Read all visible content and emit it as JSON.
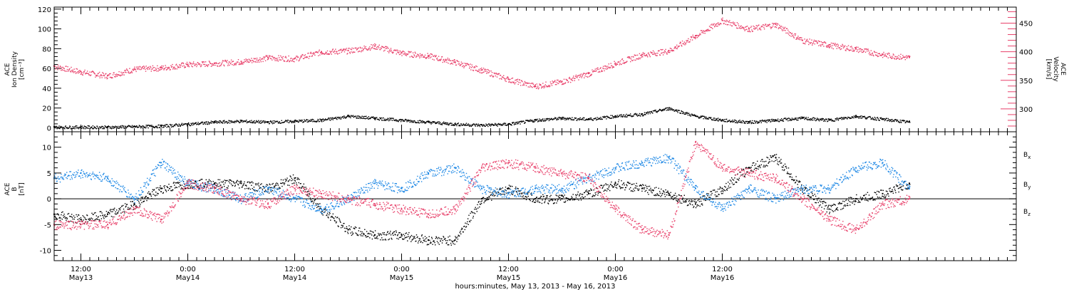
{
  "colors": {
    "density": "#000000",
    "velocity": "#e8406a",
    "bx": "#000000",
    "by": "#1e88e5",
    "bz": "#e8406a"
  },
  "chart_data": [
    {
      "type": "scatter",
      "panel": "top",
      "ylabel_left": [
        "ACE",
        "Ion Density",
        "[cm⁻³]"
      ],
      "ylabel_right": [
        "ACE",
        "Velocity",
        "[km/s]"
      ],
      "ylim_left": [
        -4,
        122
      ],
      "ylim_right": [
        260,
        478
      ],
      "yticks_left": [
        "0",
        "20",
        "40",
        "60",
        "80",
        "100",
        "120"
      ],
      "yticks_right": [
        "300",
        "350",
        "400",
        "450"
      ],
      "yticks_left_values": [
        0,
        20,
        40,
        60,
        80,
        100,
        120
      ],
      "yticks_right_values": [
        300,
        350,
        400,
        450
      ],
      "series": [
        {
          "name": "",
          "axis": "left",
          "color_key": "density",
          "x": [
            0,
            3,
            6,
            9,
            12,
            15,
            18,
            21,
            24,
            27,
            30,
            33,
            36,
            39,
            42,
            45,
            48,
            51,
            54,
            57,
            60,
            63,
            66,
            69,
            72,
            75,
            78,
            81,
            84,
            87,
            90,
            93,
            96
          ],
          "y": [
            1,
            1,
            1,
            1.5,
            2,
            4,
            6,
            7,
            6,
            7,
            8,
            12,
            10,
            8,
            6,
            4,
            3,
            4,
            8,
            10,
            9,
            12,
            14,
            20,
            12,
            8,
            6,
            8,
            10,
            8,
            12,
            9,
            6
          ]
        },
        {
          "name": "",
          "axis": "right",
          "color_key": "velocity",
          "x": [
            0,
            3,
            6,
            9,
            12,
            15,
            18,
            21,
            24,
            27,
            30,
            33,
            36,
            39,
            42,
            45,
            48,
            51,
            54,
            57,
            60,
            63,
            66,
            69,
            72,
            75,
            78,
            81,
            84,
            87,
            90,
            93,
            96
          ],
          "y": [
            375,
            365,
            358,
            370,
            372,
            378,
            380,
            383,
            390,
            388,
            400,
            402,
            410,
            398,
            393,
            382,
            368,
            352,
            340,
            348,
            362,
            380,
            395,
            402,
            428,
            455,
            440,
            448,
            420,
            412,
            405,
            395,
            390
          ]
        }
      ]
    },
    {
      "type": "scatter",
      "panel": "bottom",
      "ylabel_left": [
        "ACE",
        "B",
        "[nT]"
      ],
      "ylim": [
        -12,
        13
      ],
      "yticks": [
        "-10",
        "-5",
        "0",
        "5",
        "10"
      ],
      "yticks_values": [
        -10,
        -5,
        0,
        5,
        10
      ],
      "series": [
        {
          "name": "Bx",
          "color_key": "bx",
          "x": [
            0,
            3,
            6,
            9,
            12,
            15,
            18,
            21,
            24,
            27,
            30,
            33,
            36,
            39,
            42,
            45,
            48,
            51,
            54,
            57,
            60,
            63,
            66,
            69,
            72,
            75,
            78,
            81,
            84,
            87,
            90,
            93,
            96
          ],
          "y": [
            -3,
            -4,
            -3,
            -1,
            2,
            3,
            3,
            3,
            2,
            4,
            -2,
            -6,
            -7,
            -7,
            -8,
            -8,
            0,
            2,
            0,
            0,
            1,
            3,
            2,
            1,
            -1,
            2,
            6,
            8,
            2,
            -2,
            0,
            1,
            3
          ]
        },
        {
          "name": "By",
          "color_key": "by",
          "x": [
            0,
            3,
            6,
            9,
            12,
            15,
            18,
            21,
            24,
            27,
            30,
            33,
            36,
            39,
            42,
            45,
            48,
            51,
            54,
            57,
            60,
            63,
            66,
            69,
            72,
            75,
            78,
            81,
            84,
            87,
            90,
            93,
            96
          ],
          "y": [
            4,
            5,
            4,
            0,
            7,
            3,
            2,
            0,
            2,
            0,
            -2,
            0,
            3,
            2,
            5,
            6,
            2,
            1,
            2,
            2,
            4,
            6,
            7,
            8,
            2,
            -2,
            2,
            0,
            2,
            2,
            6,
            7,
            2
          ]
        },
        {
          "name": "Bz",
          "color_key": "bz",
          "x": [
            0,
            3,
            6,
            9,
            12,
            15,
            18,
            21,
            24,
            27,
            30,
            33,
            36,
            39,
            42,
            45,
            48,
            51,
            54,
            57,
            60,
            63,
            66,
            69,
            72,
            75,
            78,
            81,
            84,
            87,
            90,
            93,
            96
          ],
          "y": [
            -5,
            -5,
            -5,
            -2,
            -4,
            3,
            2,
            0,
            -1,
            2,
            1,
            0,
            -1,
            -2,
            -3,
            -2,
            6,
            7,
            6,
            5,
            4,
            -2,
            -6,
            -7,
            11,
            6,
            5,
            4,
            0,
            -4,
            -6,
            -1,
            0
          ]
        }
      ]
    }
  ],
  "legend": [
    {
      "base": "B",
      "sub": "x",
      "color_key": "bx"
    },
    {
      "base": "B",
      "sub": "y",
      "color_key": "by"
    },
    {
      "base": "B",
      "sub": "z",
      "color_key": "bz"
    }
  ],
  "x_axis": {
    "xlim_hours": [
      0,
      108
    ],
    "ticks": [
      {
        "hour": 3,
        "time": "12:00",
        "day": "May13"
      },
      {
        "hour": 15,
        "time": "0:00",
        "day": "May14"
      },
      {
        "hour": 27,
        "time": "12:00",
        "day": "May14"
      },
      {
        "hour": 39,
        "time": "0:00",
        "day": "May15"
      },
      {
        "hour": 51,
        "time": "12:00",
        "day": "May15"
      },
      {
        "hour": 63,
        "time": "0:00",
        "day": "May16"
      },
      {
        "hour": 75,
        "time": "12:00",
        "day": "May16"
      }
    ],
    "label": "hours:minutes, May 13, 2013 - May 16, 2013"
  }
}
